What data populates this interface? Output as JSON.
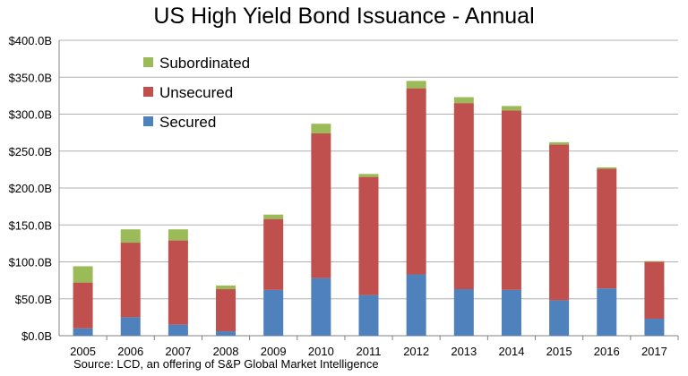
{
  "chart_data": {
    "type": "bar",
    "stacked": true,
    "title": "US High Yield Bond Issuance - Annual",
    "categories": [
      "2005",
      "2006",
      "2007",
      "2008",
      "2009",
      "2010",
      "2011",
      "2012",
      "2013",
      "2014",
      "2015",
      "2016",
      "2017"
    ],
    "series": [
      {
        "name": "Secured",
        "color": "#4f81bd",
        "values": [
          10,
          25,
          15,
          6,
          62,
          78,
          55,
          83,
          63,
          62,
          48,
          64,
          23
        ]
      },
      {
        "name": "Unsecured",
        "color": "#c0504d",
        "values": [
          62,
          101,
          114,
          57,
          96,
          196,
          160,
          252,
          252,
          243,
          211,
          162,
          77
        ]
      },
      {
        "name": "Subordinated",
        "color": "#9bbb59",
        "values": [
          22,
          18,
          15,
          5,
          6,
          13,
          4,
          10,
          8,
          6,
          3,
          2,
          1
        ]
      }
    ],
    "ylim": [
      0,
      400
    ],
    "yticks": [
      0,
      50,
      100,
      150,
      200,
      250,
      300,
      350,
      400
    ],
    "ytick_labels": [
      "$0.0B",
      "$50.0B",
      "$100.0B",
      "$150.0B",
      "$200.0B",
      "$250.0B",
      "$300.0B",
      "$350.0B",
      "$400.0B"
    ],
    "legend": {
      "placement": "top-left",
      "order": [
        "Subordinated",
        "Unsecured",
        "Secured"
      ]
    },
    "grid": true,
    "xlabel": "",
    "ylabel": ""
  },
  "source": "Source: LCD, an offering of S&P Global Market Intelligence"
}
